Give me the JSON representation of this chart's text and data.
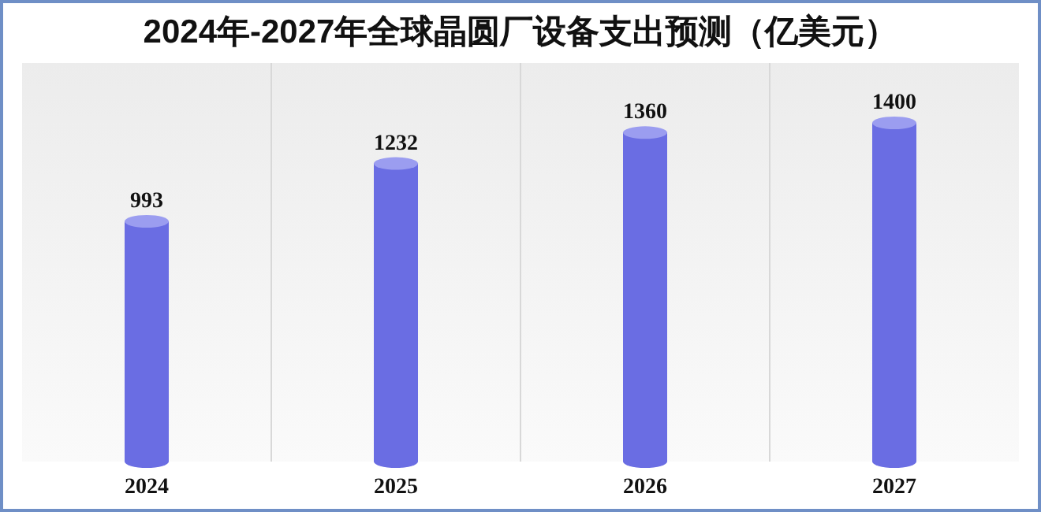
{
  "chart_data": {
    "type": "bar",
    "title": "2024年-2027年全球晶圆厂设备支出预测（亿美元）",
    "categories": [
      "2024",
      "2025",
      "2026",
      "2027"
    ],
    "values": [
      993,
      1232,
      1360,
      1400
    ],
    "color": "#6a6de3",
    "data_labels": true,
    "grid": "x"
  }
}
